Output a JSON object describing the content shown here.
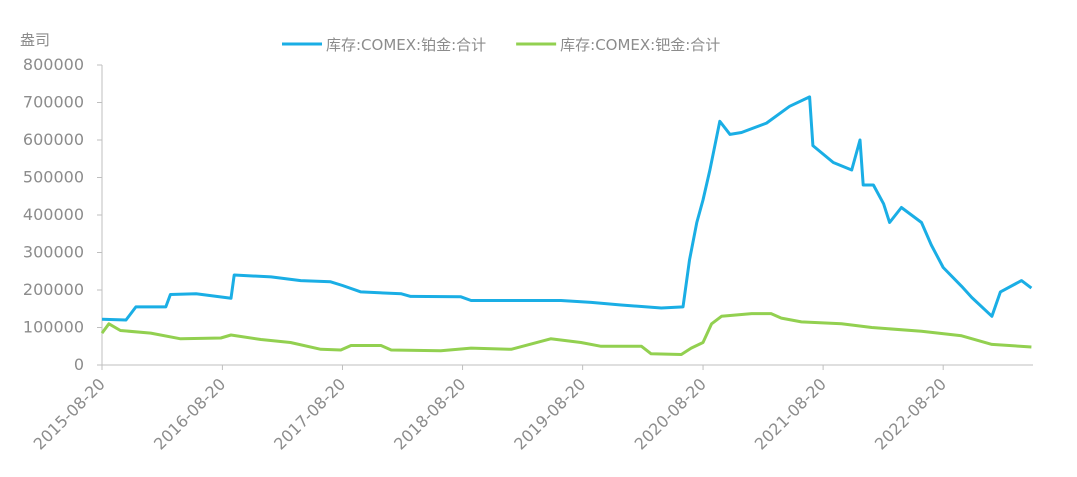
{
  "chart_data": {
    "type": "line",
    "y_label": "盎司",
    "xlim": [
      "2015-08-20",
      "2023-05-20"
    ],
    "xticks": [
      "2015-08-20",
      "2016-08-20",
      "2017-08-20",
      "2018-08-20",
      "2019-08-20",
      "2020-08-20",
      "2021-08-20",
      "2022-08-20"
    ],
    "ylim": [
      0,
      800000
    ],
    "yticks": [
      0,
      100000,
      200000,
      300000,
      400000,
      500000,
      600000,
      700000,
      800000
    ],
    "legend": "top",
    "series": [
      {
        "name": "库存:COMEX:铂金:合计",
        "color": "#1aaee5",
        "x": [
          "2015-08-20",
          "2015-11-01",
          "2015-12-01",
          "2016-03-01",
          "2016-03-15",
          "2016-06-01",
          "2016-09-15",
          "2016-09-25",
          "2017-01-15",
          "2017-04-15",
          "2017-07-15",
          "2017-08-20",
          "2017-10-15",
          "2018-02-15",
          "2018-03-15",
          "2018-08-15",
          "2018-09-15",
          "2019-06-15",
          "2019-09-15",
          "2019-12-15",
          "2020-04-15",
          "2020-06-20",
          "2020-07-10",
          "2020-08-01",
          "2020-08-20",
          "2020-09-10",
          "2020-10-10",
          "2020-11-10",
          "2020-12-15",
          "2021-03-01",
          "2021-05-10",
          "2021-07-10",
          "2021-07-20",
          "2021-09-20",
          "2021-11-15",
          "2021-12-10",
          "2021-12-20",
          "2022-01-20",
          "2022-02-20",
          "2022-03-10",
          "2022-04-15",
          "2022-06-15",
          "2022-07-15",
          "2022-08-20",
          "2022-10-15",
          "2022-11-15",
          "2023-01-15",
          "2023-02-10",
          "2023-04-15",
          "2023-05-15"
        ],
        "values": [
          122000,
          120000,
          155000,
          155000,
          188000,
          190000,
          178000,
          240000,
          235000,
          225000,
          222000,
          212000,
          195000,
          190000,
          183000,
          182000,
          172000,
          172000,
          167000,
          160000,
          152000,
          155000,
          280000,
          380000,
          440000,
          520000,
          650000,
          615000,
          620000,
          645000,
          690000,
          715000,
          585000,
          540000,
          520000,
          600000,
          480000,
          480000,
          430000,
          380000,
          420000,
          380000,
          320000,
          260000,
          210000,
          180000,
          130000,
          195000,
          225000,
          205000
        ]
      },
      {
        "name": "库存:COMEX:钯金:合计",
        "color": "#92d050",
        "x": [
          "2015-08-20",
          "2015-09-10",
          "2015-10-15",
          "2016-01-15",
          "2016-04-15",
          "2016-08-15",
          "2016-09-15",
          "2016-12-15",
          "2017-03-15",
          "2017-06-15",
          "2017-08-15",
          "2017-09-15",
          "2017-12-15",
          "2018-01-15",
          "2018-06-15",
          "2018-09-15",
          "2019-01-15",
          "2019-05-15",
          "2019-08-15",
          "2019-10-15",
          "2020-02-15",
          "2020-03-15",
          "2020-06-15",
          "2020-07-15",
          "2020-08-20",
          "2020-09-15",
          "2020-10-15",
          "2021-01-15",
          "2021-03-15",
          "2021-04-15",
          "2021-06-15",
          "2021-10-15",
          "2022-01-15",
          "2022-06-15",
          "2022-10-15",
          "2023-01-15",
          "2023-05-15"
        ],
        "values": [
          85000,
          110000,
          92000,
          85000,
          70000,
          72000,
          80000,
          68000,
          60000,
          42000,
          40000,
          52000,
          52000,
          40000,
          38000,
          45000,
          42000,
          70000,
          60000,
          50000,
          50000,
          30000,
          28000,
          45000,
          60000,
          110000,
          130000,
          137000,
          137000,
          125000,
          115000,
          110000,
          100000,
          90000,
          78000,
          55000,
          48000
        ]
      }
    ]
  }
}
